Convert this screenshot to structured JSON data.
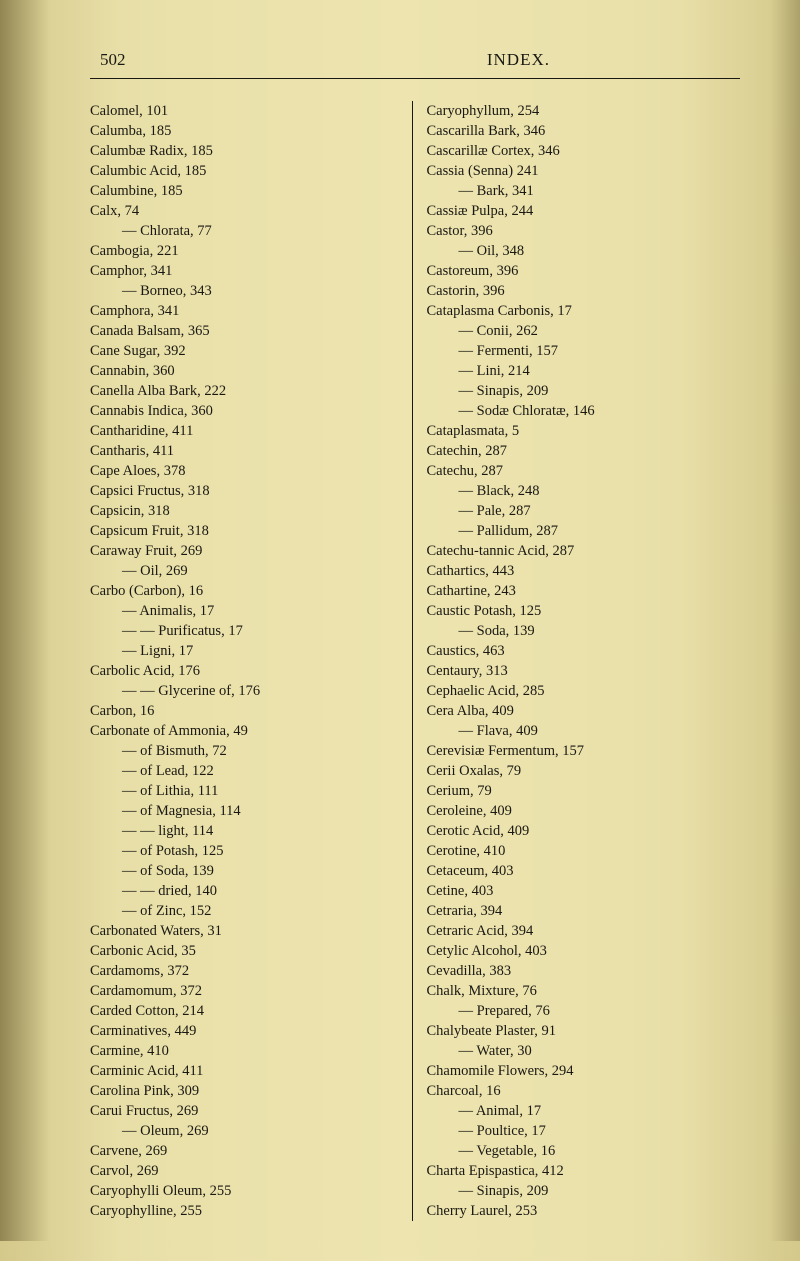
{
  "header": {
    "page_number": "502",
    "title": "INDEX."
  },
  "left_column": [
    {
      "t": "Calomel, 101",
      "i": 0
    },
    {
      "t": "Calumba, 185",
      "i": 0
    },
    {
      "t": "Calumbæ Radix, 185",
      "i": 0
    },
    {
      "t": "Calumbic Acid, 185",
      "i": 0
    },
    {
      "t": "Calumbine, 185",
      "i": 0
    },
    {
      "t": "Calx, 74",
      "i": 0
    },
    {
      "t": "—   Chlorata, 77",
      "i": 1
    },
    {
      "t": "Cambogia, 221",
      "i": 0
    },
    {
      "t": "Camphor, 341",
      "i": 0
    },
    {
      "t": "—        Borneo, 343",
      "i": 1
    },
    {
      "t": "Camphora, 341",
      "i": 0
    },
    {
      "t": "Canada Balsam, 365",
      "i": 0
    },
    {
      "t": "Cane Sugar, 392",
      "i": 0
    },
    {
      "t": "Cannabin, 360",
      "i": 0
    },
    {
      "t": "Canella Alba Bark, 222",
      "i": 0
    },
    {
      "t": "Cannabis Indica, 360",
      "i": 0
    },
    {
      "t": "Cantharidine, 411",
      "i": 0
    },
    {
      "t": "Cantharis, 411",
      "i": 0
    },
    {
      "t": "Cape Aloes, 378",
      "i": 0
    },
    {
      "t": "Capsici Fructus, 318",
      "i": 0
    },
    {
      "t": "Capsicin, 318",
      "i": 0
    },
    {
      "t": "Capsicum Fruit, 318",
      "i": 0
    },
    {
      "t": "Caraway Fruit, 269",
      "i": 0
    },
    {
      "t": "—   Oil, 269",
      "i": 1
    },
    {
      "t": "Carbo (Carbon), 16",
      "i": 0
    },
    {
      "t": "—   Animalis, 17",
      "i": 1
    },
    {
      "t": "—        —      Purificatus, 17",
      "i": 1
    },
    {
      "t": "—   Ligni, 17",
      "i": 1
    },
    {
      "t": "Carbolic Acid, 176",
      "i": 0
    },
    {
      "t": "—        —   Glycerine of, 176",
      "i": 1
    },
    {
      "t": "Carbon, 16",
      "i": 0
    },
    {
      "t": "Carbonate of Ammonia, 49",
      "i": 0
    },
    {
      "t": "—    of Bismuth, 72",
      "i": 1
    },
    {
      "t": "—    of Lead, 122",
      "i": 1
    },
    {
      "t": "—    of Lithia, 111",
      "i": 1
    },
    {
      "t": "—    of Magnesia, 114",
      "i": 1
    },
    {
      "t": "—          —       light, 114",
      "i": 1
    },
    {
      "t": "—    of Potash, 125",
      "i": 1
    },
    {
      "t": "—    of Soda, 139",
      "i": 1
    },
    {
      "t": "—          —   dried, 140",
      "i": 1
    },
    {
      "t": "—    of Zinc, 152",
      "i": 1
    },
    {
      "t": "Carbonated Waters, 31",
      "i": 0
    },
    {
      "t": "Carbonic Acid, 35",
      "i": 0
    },
    {
      "t": "Cardamoms, 372",
      "i": 0
    },
    {
      "t": "Cardamomum, 372",
      "i": 0
    },
    {
      "t": "Carded Cotton, 214",
      "i": 0
    },
    {
      "t": "Carminatives, 449",
      "i": 0
    },
    {
      "t": "Carmine, 410",
      "i": 0
    },
    {
      "t": "Carminic Acid, 411",
      "i": 0
    },
    {
      "t": "Carolina Pink, 309",
      "i": 0
    },
    {
      "t": "Carui Fructus, 269",
      "i": 0
    },
    {
      "t": "—   Oleum, 269",
      "i": 1
    },
    {
      "t": "Carvene, 269",
      "i": 0
    },
    {
      "t": "Carvol, 269",
      "i": 0
    },
    {
      "t": "Caryophylli Oleum, 255",
      "i": 0
    },
    {
      "t": "Caryophylline, 255",
      "i": 0
    }
  ],
  "right_column": [
    {
      "t": "Caryophyllum, 254",
      "i": 0
    },
    {
      "t": "Cascarilla Bark, 346",
      "i": 0
    },
    {
      "t": "Cascarillæ Cortex, 346",
      "i": 0
    },
    {
      "t": "Cassia (Senna) 241",
      "i": 0
    },
    {
      "t": "—   Bark, 341",
      "i": 1
    },
    {
      "t": "Cassiæ Pulpa, 244",
      "i": 0
    },
    {
      "t": "Castor, 396",
      "i": 0
    },
    {
      "t": "—    Oil, 348",
      "i": 1
    },
    {
      "t": "Castoreum, 396",
      "i": 0
    },
    {
      "t": "Castorin, 396",
      "i": 0
    },
    {
      "t": "Cataplasma Carbonis, 17",
      "i": 0
    },
    {
      "t": "—      Conii, 262",
      "i": 1
    },
    {
      "t": "—      Fermenti, 157",
      "i": 1
    },
    {
      "t": "—      Lini, 214",
      "i": 1
    },
    {
      "t": "—      Sinapis, 209",
      "i": 1
    },
    {
      "t": "—      Sodæ Chloratæ, 146",
      "i": 1
    },
    {
      "t": "Cataplasmata, 5",
      "i": 0
    },
    {
      "t": "Catechin, 287",
      "i": 0
    },
    {
      "t": "Catechu, 287",
      "i": 0
    },
    {
      "t": "—    Black, 248",
      "i": 1
    },
    {
      "t": "—    Pale, 287",
      "i": 1
    },
    {
      "t": "—    Pallidum, 287",
      "i": 1
    },
    {
      "t": "Catechu-tannic Acid, 287",
      "i": 0
    },
    {
      "t": "Cathartics, 443",
      "i": 0
    },
    {
      "t": "Cathartine, 243",
      "i": 0
    },
    {
      "t": "Caustic Potash, 125",
      "i": 0
    },
    {
      "t": "—    Soda, 139",
      "i": 1
    },
    {
      "t": "Caustics, 463",
      "i": 0
    },
    {
      "t": "Centaury, 313",
      "i": 0
    },
    {
      "t": "Cephaelic Acid, 285",
      "i": 0
    },
    {
      "t": "Cera Alba, 409",
      "i": 0
    },
    {
      "t": "—   Flava, 409",
      "i": 1
    },
    {
      "t": "Cerevisiæ Fermentum, 157",
      "i": 0
    },
    {
      "t": "Cerii Oxalas, 79",
      "i": 0
    },
    {
      "t": "Cerium, 79",
      "i": 0
    },
    {
      "t": "Ceroleine, 409",
      "i": 0
    },
    {
      "t": "Cerotic Acid, 409",
      "i": 0
    },
    {
      "t": "Cerotine, 410",
      "i": 0
    },
    {
      "t": "Cetaceum, 403",
      "i": 0
    },
    {
      "t": "Cetine, 403",
      "i": 0
    },
    {
      "t": "Cetraria, 394",
      "i": 0
    },
    {
      "t": "Cetraric Acid, 394",
      "i": 0
    },
    {
      "t": "Cetylic Alcohol, 403",
      "i": 0
    },
    {
      "t": "Cevadilla, 383",
      "i": 0
    },
    {
      "t": "Chalk, Mixture, 76",
      "i": 0
    },
    {
      "t": "—    Prepared, 76",
      "i": 1
    },
    {
      "t": "Chalybeate Plaster, 91",
      "i": 0
    },
    {
      "t": "—       Water, 30",
      "i": 1
    },
    {
      "t": "Chamomile Flowers, 294",
      "i": 0
    },
    {
      "t": "Charcoal, 16",
      "i": 0
    },
    {
      "t": "—      Animal, 17",
      "i": 1
    },
    {
      "t": "—      Poultice, 17",
      "i": 1
    },
    {
      "t": "—      Vegetable, 16",
      "i": 1
    },
    {
      "t": "Charta Epispastica, 412",
      "i": 0
    },
    {
      "t": "—    Sinapis, 209",
      "i": 1
    },
    {
      "t": "Cherry Laurel, 253",
      "i": 0
    }
  ]
}
